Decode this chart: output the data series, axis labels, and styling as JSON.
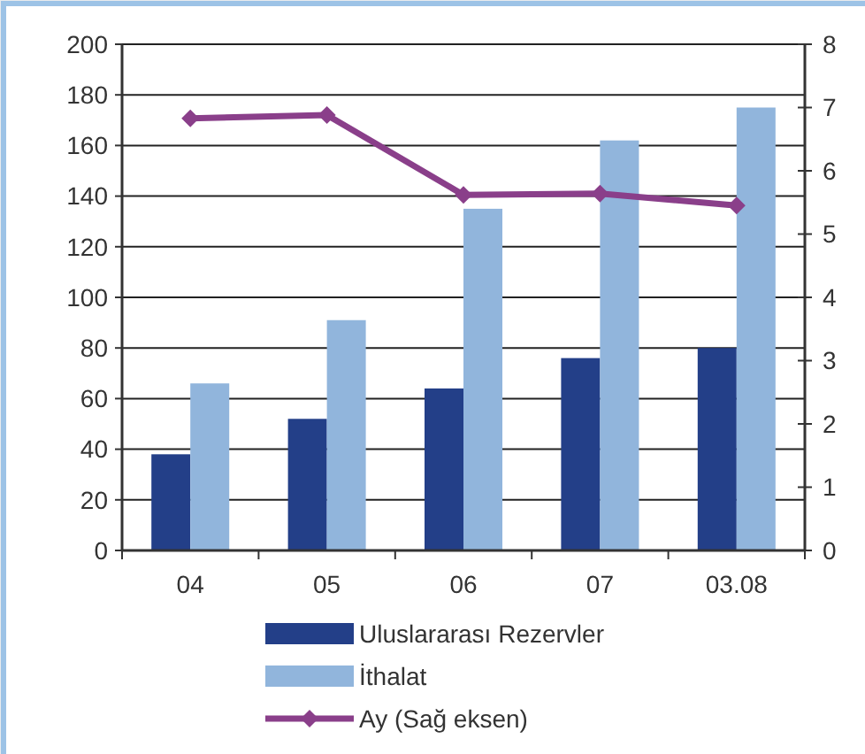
{
  "chart_data": {
    "type": "bar",
    "categories": [
      "04",
      "05",
      "06",
      "07",
      "03.08"
    ],
    "series": [
      {
        "name": "Uluslararası Rezervler",
        "color": "#233f88",
        "values": [
          38,
          52,
          64,
          76,
          80
        ]
      },
      {
        "name": "İthalat",
        "color": "#91b5dc",
        "values": [
          66,
          91,
          135,
          162,
          175
        ]
      },
      {
        "name": "Ay (Sağ eksen)",
        "type": "line",
        "axis": "y2",
        "color": "#8a3f8a",
        "marker": "diamond",
        "values": [
          6.83,
          6.88,
          5.62,
          5.64,
          5.45
        ]
      }
    ],
    "ylim": [
      0,
      200
    ],
    "yticks": [
      0,
      20,
      40,
      60,
      80,
      100,
      120,
      140,
      160,
      180,
      200
    ],
    "y2lim": [
      0,
      8
    ],
    "y2ticks": [
      0,
      1,
      2,
      3,
      4,
      5,
      6,
      7,
      8
    ],
    "grid": "y",
    "legend": "bottom"
  }
}
